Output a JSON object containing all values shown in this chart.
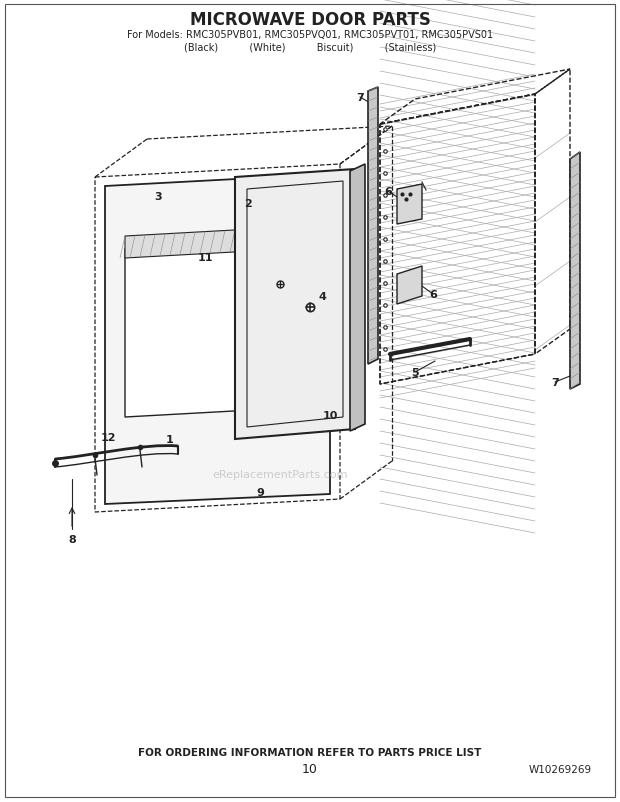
{
  "title": "MICROWAVE DOOR PARTS",
  "subtitle1": "For Models: RMC305PVB01, RMC305PVQ01, RMC305PVT01, RMC305PVS01",
  "subtitle2": "(Black)          (White)          Biscuit)          (Stainless)",
  "footer1": "FOR ORDERING INFORMATION REFER TO PARTS PRICE LIST",
  "footer2": "10",
  "footer3": "W10269269",
  "watermark": "eReplacementParts.com",
  "bg_color": "#ffffff",
  "line_color": "#222222"
}
